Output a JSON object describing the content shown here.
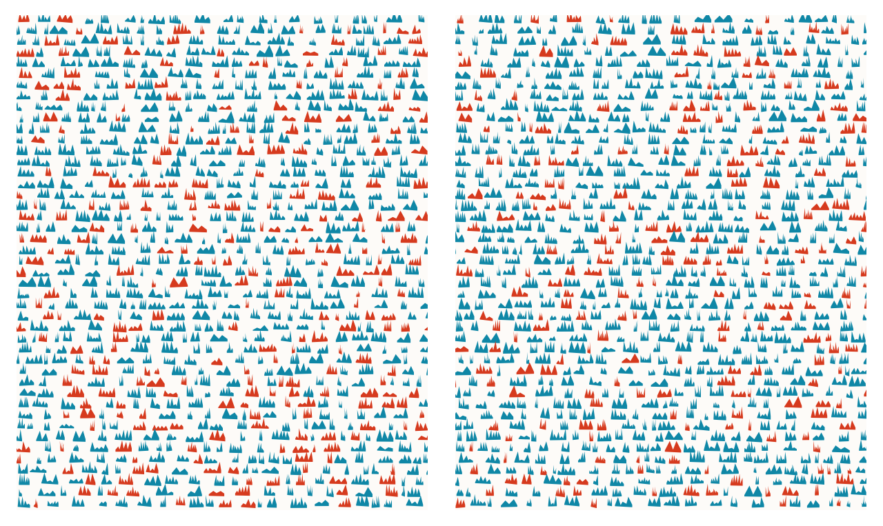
{
  "artwork": {
    "palette": {
      "background": "#fdfbf8",
      "primary": "#0f87a6",
      "accent": "#d63a1e"
    },
    "panels": [
      {
        "id": "left",
        "seed": 1337,
        "rows": 45,
        "accent_ratio": 0.28
      },
      {
        "id": "right",
        "seed": 9029,
        "rows": 45,
        "accent_ratio": 0.26
      }
    ]
  }
}
